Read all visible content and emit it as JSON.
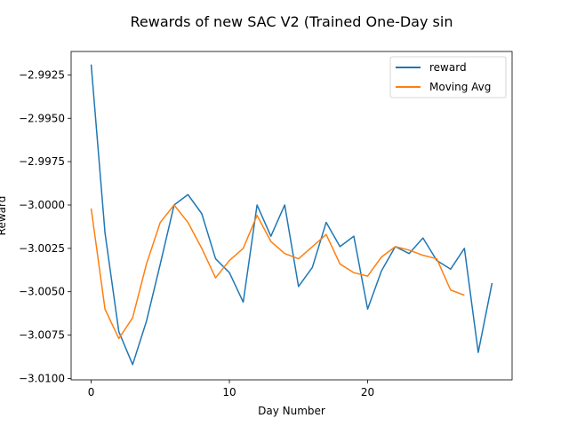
{
  "chart_data": {
    "type": "line",
    "title": "Rewards of new SAC V2 (Trained One-Day sin",
    "xlabel": "Day Number",
    "ylabel": "Reward",
    "xlim": [
      -1.45,
      30.45
    ],
    "ylim": [
      -3.01008,
      -2.99115
    ],
    "xticks": [
      0,
      10,
      20
    ],
    "xtick_labels": [
      "0",
      "10",
      "20"
    ],
    "yticks": [
      -2.9925,
      -2.995,
      -2.9975,
      -3.0,
      -3.0025,
      -3.005,
      -3.0075,
      -3.01
    ],
    "ytick_labels": [
      "−2.9925",
      "−2.9950",
      "−2.9975",
      "−3.0000",
      "−3.0025",
      "−3.0050",
      "−3.0075",
      "−3.0100"
    ],
    "grid": false,
    "legend_position": "top-right",
    "series": [
      {
        "name": "reward",
        "color": "#1f77b4",
        "x": [
          0,
          1,
          2,
          3,
          4,
          5,
          6,
          7,
          8,
          9,
          10,
          11,
          12,
          13,
          14,
          15,
          16,
          17,
          18,
          19,
          20,
          21,
          22,
          23,
          24,
          25,
          26,
          27,
          28,
          29
        ],
        "y": [
          -2.9919,
          -3.0016,
          -3.0073,
          -3.0092,
          -3.0067,
          -3.0034,
          -3.0,
          -2.9994,
          -3.0005,
          -3.0031,
          -3.0039,
          -3.0056,
          -3.0,
          -3.0018,
          -3.0,
          -3.0047,
          -3.0036,
          -3.001,
          -3.0024,
          -3.0018,
          -3.006,
          -3.0038,
          -3.0024,
          -3.0028,
          -3.0019,
          -3.0032,
          -3.0037,
          -3.0025,
          -3.0085,
          -3.0045
        ]
      },
      {
        "name": "Moving Avg",
        "color": "#ff7f0e",
        "x": [
          0,
          1,
          2,
          3,
          4,
          5,
          6,
          7,
          8,
          9,
          10,
          11,
          12,
          13,
          14,
          15,
          16,
          17,
          18,
          19,
          20,
          21,
          22,
          23,
          24,
          25,
          26,
          27
        ],
        "y": [
          -3.0002,
          -3.006,
          -3.0077,
          -3.0065,
          -3.0034,
          -3.001,
          -3.0,
          -3.001,
          -3.0025,
          -3.0042,
          -3.0032,
          -3.0025,
          -3.0006,
          -3.0021,
          -3.0028,
          -3.0031,
          -3.0024,
          -3.0017,
          -3.0034,
          -3.0039,
          -3.0041,
          -3.003,
          -3.0024,
          -3.0026,
          -3.0029,
          -3.0031,
          -3.0049,
          -3.0052
        ]
      }
    ]
  }
}
